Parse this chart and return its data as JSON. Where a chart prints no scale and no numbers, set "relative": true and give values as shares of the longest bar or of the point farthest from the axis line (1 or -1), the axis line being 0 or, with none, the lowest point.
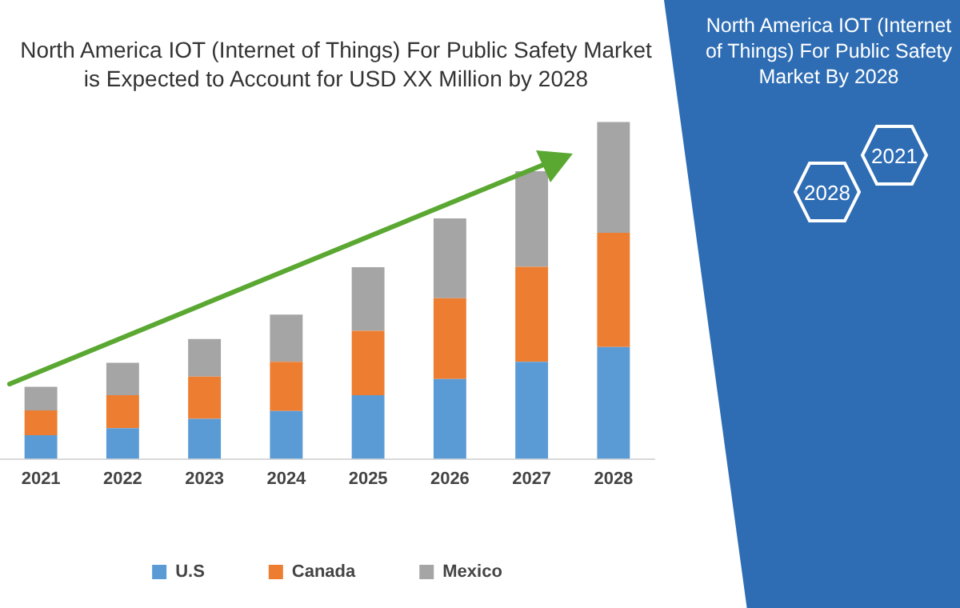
{
  "chart_data": {
    "type": "bar",
    "title": "North America IOT (Internet of Things) For Public Safety Market is Expected to Account for USD XX Million by 2028",
    "categories": [
      "2021",
      "2022",
      "2023",
      "2024",
      "2025",
      "2026",
      "2027",
      "2028"
    ],
    "stacked": true,
    "relative": true,
    "legend": "bottom",
    "grid": false,
    "series": [
      {
        "name": "U.S",
        "color": "#5b9bd5",
        "values": [
          0.07,
          0.091,
          0.119,
          0.142,
          0.189,
          0.237,
          0.288,
          0.332
        ]
      },
      {
        "name": "Canada",
        "color": "#ed7d31",
        "values": [
          0.074,
          0.098,
          0.125,
          0.146,
          0.191,
          0.24,
          0.282,
          0.339
        ]
      },
      {
        "name": "Mexico",
        "color": "#a5a5a5",
        "values": [
          0.07,
          0.096,
          0.112,
          0.14,
          0.189,
          0.237,
          0.284,
          0.329
        ]
      }
    ],
    "annotations": [
      "North America IOT (Internet of Things) For Public Safety Market By 2028",
      "2021",
      "2028"
    ]
  }
}
